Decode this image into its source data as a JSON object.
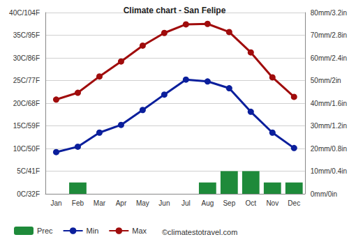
{
  "chart_data": {
    "type": "bar",
    "title": "Climate chart - San Felipe",
    "categories": [
      "Jan",
      "Feb",
      "Mar",
      "Apr",
      "May",
      "Jun",
      "Jul",
      "Aug",
      "Sep",
      "Oct",
      "Nov",
      "Dec"
    ],
    "series": [
      {
        "name": "Prec",
        "type": "bar",
        "axis": "y2",
        "color": "#1e8a3a",
        "values": [
          0,
          5,
          0,
          0,
          0,
          0,
          0,
          5,
          10,
          10,
          5,
          5
        ]
      },
      {
        "name": "Min",
        "type": "line",
        "color": "#0b1f9c",
        "marker": "circle",
        "values": [
          9.2,
          10.4,
          13.5,
          15.2,
          18.5,
          21.9,
          25.2,
          24.8,
          23.3,
          18.1,
          13.5,
          10.1
        ]
      },
      {
        "name": "Max",
        "type": "line",
        "color": "#a00c0c",
        "marker": "circle",
        "values": [
          20.8,
          22.3,
          25.9,
          29.2,
          32.7,
          35.5,
          37.4,
          37.5,
          35.7,
          31.2,
          25.7,
          21.4
        ]
      }
    ],
    "ylim": [
      0,
      40
    ],
    "yticks": [
      {
        "value": 0,
        "label": "0C/32F"
      },
      {
        "value": 5,
        "label": "5C/41F"
      },
      {
        "value": 10,
        "label": "10C/50F"
      },
      {
        "value": 15,
        "label": "15C/59F"
      },
      {
        "value": 20,
        "label": "20C/68F"
      },
      {
        "value": 25,
        "label": "25C/77F"
      },
      {
        "value": 30,
        "label": "30C/86F"
      },
      {
        "value": 35,
        "label": "35C/95F"
      },
      {
        "value": 40,
        "label": "40C/104F"
      }
    ],
    "y2lim": [
      0,
      80
    ],
    "y2ticks": [
      {
        "value": 0,
        "label": "0mm/0in"
      },
      {
        "value": 10,
        "label": "10mm/0.4in"
      },
      {
        "value": 20,
        "label": "20mm/0.8in"
      },
      {
        "value": 30,
        "label": "30mm/1.2in"
      },
      {
        "value": 40,
        "label": "40mm/1.6in"
      },
      {
        "value": 50,
        "label": "50mm/2in"
      },
      {
        "value": 60,
        "label": "60mm/2.4in"
      },
      {
        "value": 70,
        "label": "70mm/2.8in"
      },
      {
        "value": 80,
        "label": "80mm/3.2in"
      }
    ],
    "grid": true,
    "legend": "bottom-left",
    "annotations": [
      "©climatestotravel.com"
    ]
  }
}
